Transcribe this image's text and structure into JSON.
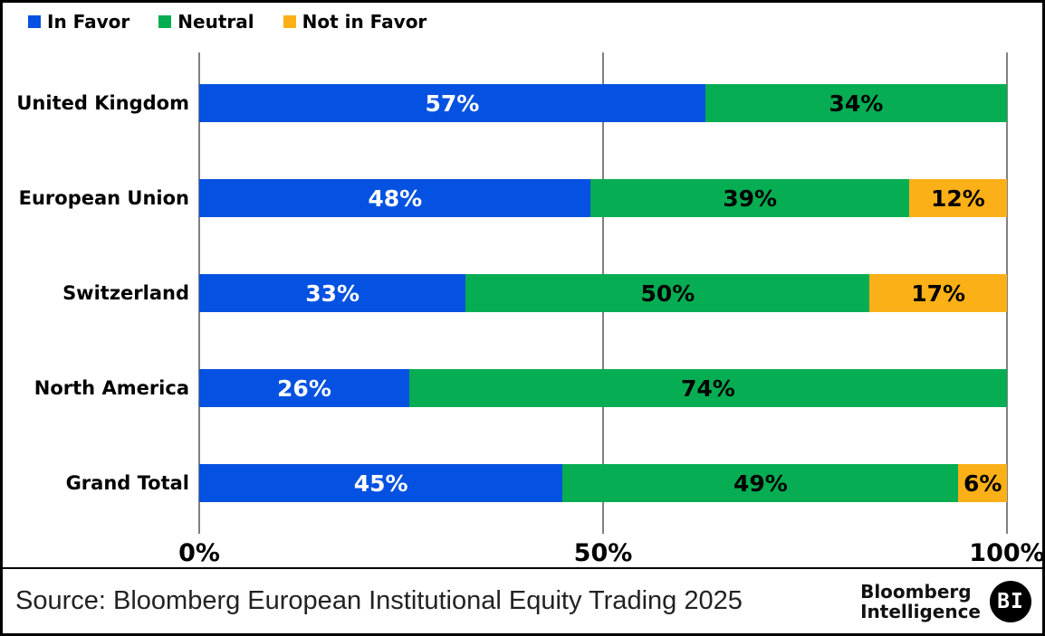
{
  "chart_data": {
    "type": "bar",
    "orientation": "horizontal",
    "stacked": true,
    "normalized_each_bar_to_100pct": true,
    "title": "",
    "categories": [
      "United Kingdom",
      "European Union",
      "Switzerland",
      "North America",
      "Grand Total"
    ],
    "series": [
      {
        "name": "In Favor",
        "color": "#0551E1",
        "label_color": "#FFFFFF",
        "values": [
          57,
          48,
          33,
          26,
          45
        ]
      },
      {
        "name": "Neutral",
        "color": "#06AD52",
        "label_color": "#000000",
        "values": [
          34,
          39,
          50,
          74,
          49
        ]
      },
      {
        "name": "Not in Favor",
        "color": "#FCB017",
        "label_color": "#000000",
        "values": [
          0,
          12,
          17,
          0,
          6
        ]
      }
    ],
    "value_suffix": "%",
    "x_axis": {
      "range": [
        0,
        100
      ],
      "ticks": [
        {
          "label": "0%",
          "pos": 0
        },
        {
          "label": "50%",
          "pos": 50
        },
        {
          "label": "100%",
          "pos": 100
        }
      ],
      "gridlines": true
    },
    "legend_position": "top-left"
  },
  "footer": {
    "source": "Source: Bloomberg European Institutional Equity Trading 2025",
    "brand": {
      "line1": "Bloomberg",
      "line2": "Intelligence",
      "badge": "BI"
    }
  },
  "layout_colors": {
    "bar_border": "#000000",
    "background": "#FFFFFF"
  }
}
